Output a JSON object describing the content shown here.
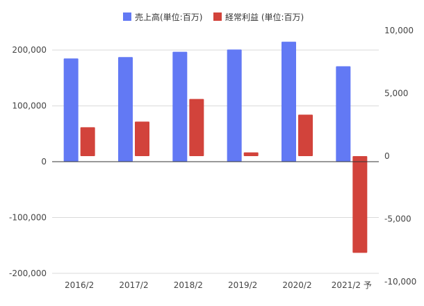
{
  "chart_data": {
    "type": "bar",
    "categories": [
      "2016/2",
      "2017/2",
      "2018/2",
      "2019/2",
      "2020/2",
      "2021/2 予"
    ],
    "series": [
      {
        "name": "売上高(単位:百万)",
        "axis": "left",
        "color": "#6279f4",
        "values": [
          185000,
          187500,
          197000,
          201000,
          215000,
          171000
        ]
      },
      {
        "name": "経常利益 (単位:百万)",
        "axis": "right",
        "color": "#d2433b",
        "values": [
          2300,
          2750,
          4550,
          300,
          3300,
          -7700
        ]
      }
    ],
    "left_axis": {
      "ylim": [
        -215000,
        235000
      ],
      "ticks": [
        200000,
        100000,
        0,
        -100000,
        -200000
      ],
      "tick_labels": [
        "200,000",
        "100,000",
        "0",
        "-100,000",
        "-200,000"
      ]
    },
    "right_axis": {
      "ylim": [
        -10000,
        10000
      ],
      "ticks": [
        10000,
        5000,
        0,
        -5000,
        -10000
      ],
      "tick_labels": [
        "10,000",
        "5,000",
        "0",
        "-5,000",
        "-10,000"
      ]
    },
    "legend_position": "top-center",
    "grid": true
  }
}
